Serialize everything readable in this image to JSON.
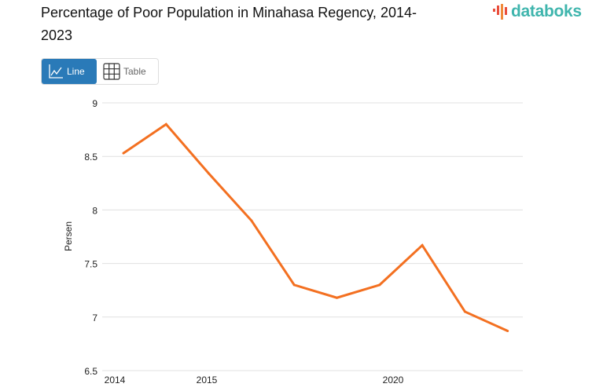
{
  "header": {
    "title": "Percentage of Poor Population in Minahasa Regency, 2014-2023",
    "logo_text": "databoks"
  },
  "view_toggle": {
    "line_label": "Line",
    "table_label": "Table",
    "active": "line"
  },
  "colors": {
    "line": "#f37021",
    "active_button": "#2a7ab8",
    "logo_text": "#3fb5ad",
    "grid": "#e0e0e0"
  },
  "chart_data": {
    "type": "line",
    "title": "Percentage of Poor Population in Minahasa Regency, 2014-2023",
    "xlabel": "",
    "ylabel": "Persen",
    "ylim": [
      6.5,
      9
    ],
    "yticks": [
      "6.5",
      "7",
      "7.5",
      "8",
      "8.5",
      "9"
    ],
    "xtick_labels": [
      "2014",
      "2015",
      "2020"
    ],
    "grid": true,
    "x": [
      2014,
      2015,
      2016,
      2017,
      2018,
      2019,
      2020,
      2021,
      2022,
      2023
    ],
    "values": [
      8.53,
      8.8,
      8.34,
      7.9,
      7.3,
      7.18,
      7.3,
      7.67,
      7.05,
      6.87
    ]
  }
}
